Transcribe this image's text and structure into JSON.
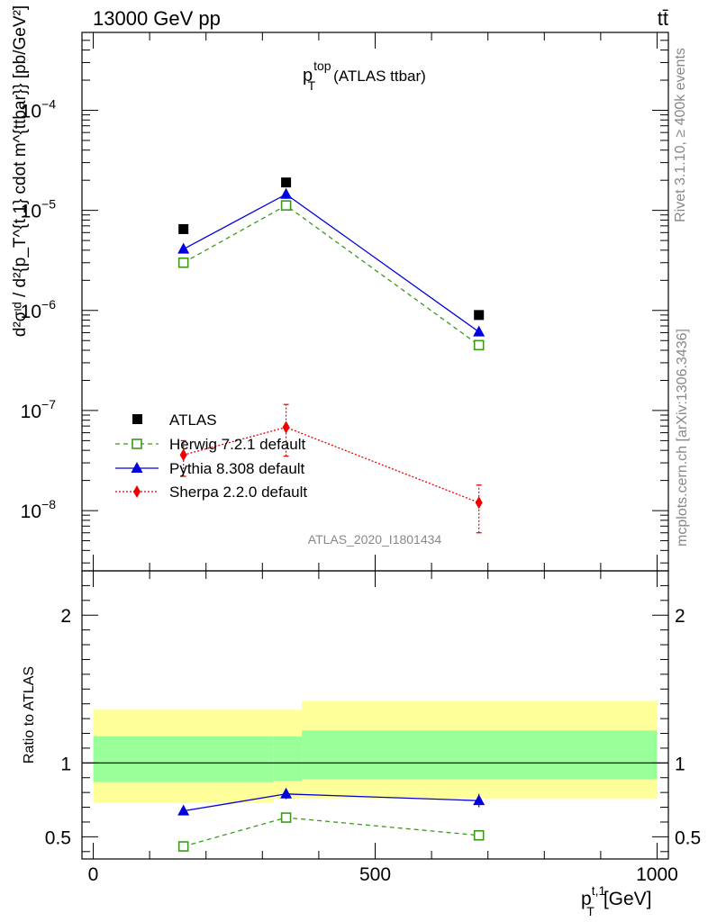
{
  "header": {
    "process": "13000 GeV pp",
    "final_state": "tt̄",
    "rivet_label": "Rivet 3.1.10, ≥ 400k events",
    "mcplots_label": "mcplots.cern.ch [arXiv:1306.3436]",
    "analysis_id": "ATLAS_2020_I1801434"
  },
  "chart_data": [
    {
      "type": "line",
      "panel": "main",
      "title_main": "p",
      "title_sup": "top",
      "title_sub": "T",
      "title_suffix": "(ATLAS ttbar)",
      "ylabel": "d²σᶦᵈ / d²{p_T^{t,1} cdot m^{ttbar}} [pb/GeV²]",
      "yscale": "log",
      "ylim": [
        2.5e-09,
        0.0006
      ],
      "xlim": [
        -20,
        1020
      ],
      "yticks": [
        {
          "v": 0.0001,
          "base": "10",
          "exp": "−4"
        },
        {
          "v": 1e-05,
          "base": "10",
          "exp": "−5"
        },
        {
          "v": 1e-06,
          "base": "10",
          "exp": "−6"
        },
        {
          "v": 1e-07,
          "base": "10",
          "exp": "−7"
        },
        {
          "v": 1e-08,
          "base": "10",
          "exp": "−8"
        }
      ],
      "series": [
        {
          "name": "ATLAS",
          "color": "#000000",
          "marker": "square",
          "x": [
            160,
            342,
            684
          ],
          "y": [
            6.5e-06,
            1.9e-05,
            9e-07
          ]
        },
        {
          "name": "Herwig 7.2.1 default",
          "color": "#3a9a1a",
          "marker": "open-square",
          "dash": "5,4",
          "x": [
            160,
            342,
            684
          ],
          "y": [
            3e-06,
            1.12e-05,
            4.5e-07
          ]
        },
        {
          "name": "Pythia 8.308 default",
          "color": "#0000dd",
          "marker": "triangle",
          "x": [
            160,
            342,
            684
          ],
          "y": [
            4.1e-06,
            1.45e-05,
            6.1e-07
          ]
        },
        {
          "name": "Sherpa 2.2.0 default",
          "color": "#ee0000",
          "marker": "diamond",
          "dash": "2,2",
          "x": [
            160,
            342,
            684
          ],
          "y": [
            3.6e-08,
            6.8e-08,
            1.2e-08
          ],
          "ylow": [
            2.2e-08,
            3.5e-08,
            6e-09
          ],
          "yhigh": [
            5e-08,
            1.15e-07,
            1.8e-08
          ]
        }
      ]
    },
    {
      "type": "line",
      "panel": "ratio",
      "ylabel": "Ratio to ATLAS",
      "xlabel_main": "p",
      "xlabel_sup": "t,1",
      "xlabel_sub": "T",
      "xlabel_unit": "[GeV]",
      "xlim": [
        -20,
        1020
      ],
      "ylim": [
        0.35,
        2.3
      ],
      "xticks": [
        0,
        500,
        1000
      ],
      "yticks": [
        0.5,
        1,
        2
      ],
      "bands": {
        "edges": [
          0,
          320,
          370,
          1000
        ],
        "outer_low": [
          0.73,
          0.76,
          0.76
        ],
        "outer_high": [
          1.36,
          1.36,
          1.42
        ],
        "inner_low": [
          0.87,
          0.88,
          0.89
        ],
        "inner_high": [
          1.18,
          1.18,
          1.22
        ],
        "outer_color": "#ffff99",
        "inner_color": "#99ff99"
      },
      "series": [
        {
          "name": "Herwig 7.2.1 default",
          "color": "#3a9a1a",
          "marker": "open-square",
          "dash": "5,4",
          "x": [
            160,
            342,
            684
          ],
          "y": [
            0.435,
            0.63,
            0.51
          ],
          "err": [
            0.01,
            0.02,
            0.03
          ]
        },
        {
          "name": "Pythia 8.308 default",
          "color": "#0000dd",
          "marker": "triangle",
          "x": [
            160,
            342,
            684
          ],
          "y": [
            0.675,
            0.79,
            0.745
          ],
          "err": [
            0.025,
            0.035,
            0.045
          ]
        }
      ]
    }
  ]
}
